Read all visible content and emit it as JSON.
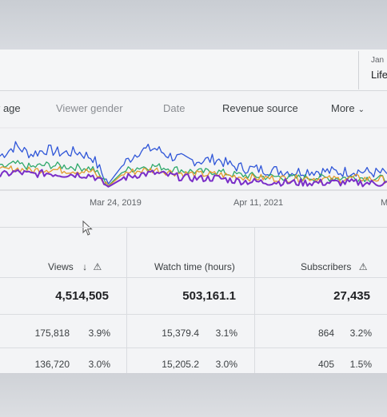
{
  "header": {
    "date_label": "Jan",
    "date_value": "Life"
  },
  "tabs": [
    {
      "label": "r age"
    },
    {
      "label": "Viewer gender"
    },
    {
      "label": "Date"
    },
    {
      "label": "Revenue source"
    },
    {
      "label": "More"
    }
  ],
  "chart_data": {
    "type": "line",
    "x_tick_labels": [
      "Mar 24, 2019",
      "Apr 11, 2021",
      "M"
    ],
    "colors": {
      "views": "#2f56d8",
      "watch_time": "#e39a2c",
      "subscribers": "#2ea86a",
      "other": "#7a2ec8"
    },
    "series": [
      {
        "values": [
          0.55,
          0.72,
          0.58,
          0.66,
          0.6,
          0.62,
          0.52,
          0.08,
          0.42,
          0.64,
          0.68,
          0.55,
          0.48,
          0.47,
          0.5,
          0.38,
          0.34,
          0.32,
          0.3,
          0.28,
          0.3,
          0.29,
          0.28,
          0.3,
          0.27,
          0.26
        ]
      },
      {
        "values": [
          0.35,
          0.42,
          0.36,
          0.4,
          0.38,
          0.36,
          0.34,
          0.05,
          0.3,
          0.36,
          0.38,
          0.34,
          0.3,
          0.28,
          0.29,
          0.24,
          0.22,
          0.2,
          0.2,
          0.18,
          0.19,
          0.18,
          0.18,
          0.19,
          0.17,
          0.17
        ]
      },
      {
        "values": [
          0.3,
          0.34,
          0.3,
          0.33,
          0.31,
          0.3,
          0.28,
          0.04,
          0.26,
          0.3,
          0.32,
          0.28,
          0.25,
          0.24,
          0.24,
          0.21,
          0.19,
          0.18,
          0.17,
          0.17,
          0.18,
          0.16,
          0.16,
          0.18,
          0.16,
          0.15
        ]
      },
      {
        "values": [
          0.22,
          0.28,
          0.24,
          0.26,
          0.24,
          0.24,
          0.22,
          0.03,
          0.18,
          0.24,
          0.26,
          0.22,
          0.18,
          0.17,
          0.18,
          0.14,
          0.12,
          0.11,
          0.11,
          0.1,
          0.1,
          0.1,
          0.1,
          0.1,
          0.09,
          0.09
        ]
      }
    ]
  },
  "table": {
    "columns": [
      {
        "label": "Views",
        "sort_icon": "↓",
        "warn_icon": "⚠"
      },
      {
        "label": "Watch time (hours)"
      },
      {
        "label": "Subscribers",
        "warn_icon": "⚠"
      }
    ],
    "totals": [
      "4,514,505",
      "503,161.1",
      "27,435"
    ],
    "rows": [
      {
        "cells": [
          {
            "value": "175,818",
            "pct": "3.9%"
          },
          {
            "value": "15,379.4",
            "pct": "3.1%"
          },
          {
            "value": "864",
            "pct": "3.2%"
          }
        ]
      },
      {
        "cells": [
          {
            "value": "136,720",
            "pct": "3.0%"
          },
          {
            "value": "15,205.2",
            "pct": "3.0%"
          },
          {
            "value": "405",
            "pct": "1.5%"
          }
        ]
      }
    ]
  }
}
